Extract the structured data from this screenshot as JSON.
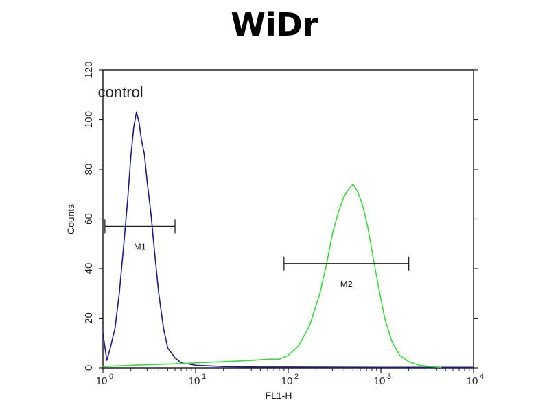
{
  "chart_data": {
    "type": "line",
    "title": "WiDr",
    "xlabel": "FL1-H",
    "ylabel": "Counts",
    "x_scale": "log",
    "xlim": [
      1,
      10000
    ],
    "ylim": [
      0,
      120
    ],
    "x_ticks": [
      {
        "value": 1,
        "base": "10",
        "exp": "0"
      },
      {
        "value": 10,
        "base": "10",
        "exp": "1"
      },
      {
        "value": 100,
        "base": "10",
        "exp": "2"
      },
      {
        "value": 1000,
        "base": "10",
        "exp": "3"
      },
      {
        "value": 10000,
        "base": "10",
        "exp": "4"
      }
    ],
    "y_ticks": [
      "0",
      "20",
      "40",
      "60",
      "80",
      "100",
      "120"
    ],
    "grid": false,
    "legend": "none",
    "series": [
      {
        "name": "control",
        "color": "#1a1a8c",
        "x": [
          1,
          1.1,
          1.2,
          1.35,
          1.5,
          1.7,
          1.85,
          2.0,
          2.15,
          2.3,
          2.45,
          2.6,
          2.8,
          3.0,
          3.3,
          3.6,
          4.0,
          4.5,
          5.0,
          6.0,
          7.0,
          8.5,
          10,
          13,
          20,
          50,
          100,
          1000,
          10000
        ],
        "y": [
          14,
          3,
          8,
          16,
          30,
          52,
          68,
          85,
          97,
          103,
          99,
          92,
          86,
          75,
          62,
          47,
          30,
          16,
          8,
          4,
          2,
          1.5,
          1,
          0.8,
          0.5,
          0.3,
          0.3,
          0.2,
          0.2
        ]
      },
      {
        "name": "",
        "color": "#33dd33",
        "x": [
          1,
          2,
          5,
          10,
          20,
          40,
          60,
          80,
          100,
          130,
          170,
          220,
          260,
          300,
          350,
          400,
          450,
          500,
          560,
          630,
          720,
          820,
          950,
          1100,
          1300,
          1600,
          2000,
          2600,
          3500,
          4500
        ],
        "y": [
          0.5,
          1,
          1.5,
          2,
          2.5,
          3,
          3.5,
          3.5,
          5,
          9,
          17,
          30,
          42,
          54,
          63,
          69,
          72,
          74,
          71,
          66,
          57,
          45,
          32,
          20,
          11,
          5,
          2.5,
          1,
          0.5,
          0.2
        ]
      }
    ],
    "annotations": [
      {
        "text": "control",
        "x": 1.55,
        "y": 109
      }
    ],
    "gates": [
      {
        "label": "M1",
        "x_start": 1.05,
        "x_end": 6,
        "y": 57
      },
      {
        "label": "M2",
        "x_start": 90,
        "x_end": 2000,
        "y": 42
      }
    ]
  }
}
